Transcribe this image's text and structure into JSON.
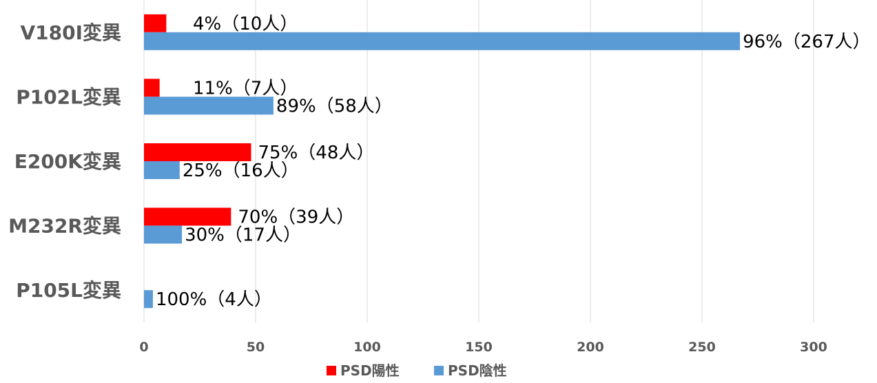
{
  "chart_data": {
    "type": "bar",
    "orientation": "horizontal",
    "categories": [
      "V180I変異",
      "P102L変異",
      "E200K変異",
      "M232R変異",
      "P105L変異"
    ],
    "series": [
      {
        "name": "PSD陽性",
        "color": "#ff0000",
        "values": [
          10,
          7,
          48,
          39,
          0
        ],
        "labels": [
          "4%（10人）",
          "11%（7人）",
          "75%（48人）",
          "70%（39人）",
          ""
        ]
      },
      {
        "name": "PSD陰性",
        "color": "#5b9bd5",
        "values": [
          267,
          58,
          16,
          17,
          4
        ],
        "labels": [
          "96%（267人）",
          "89%（58人）",
          "25%（16人）",
          "30%（17人）",
          "100%（4人）"
        ]
      }
    ],
    "xlim": [
      0,
      300
    ],
    "xticks": [
      0,
      50,
      100,
      150,
      200,
      250,
      300
    ],
    "grid": true,
    "legend": "bottom"
  }
}
